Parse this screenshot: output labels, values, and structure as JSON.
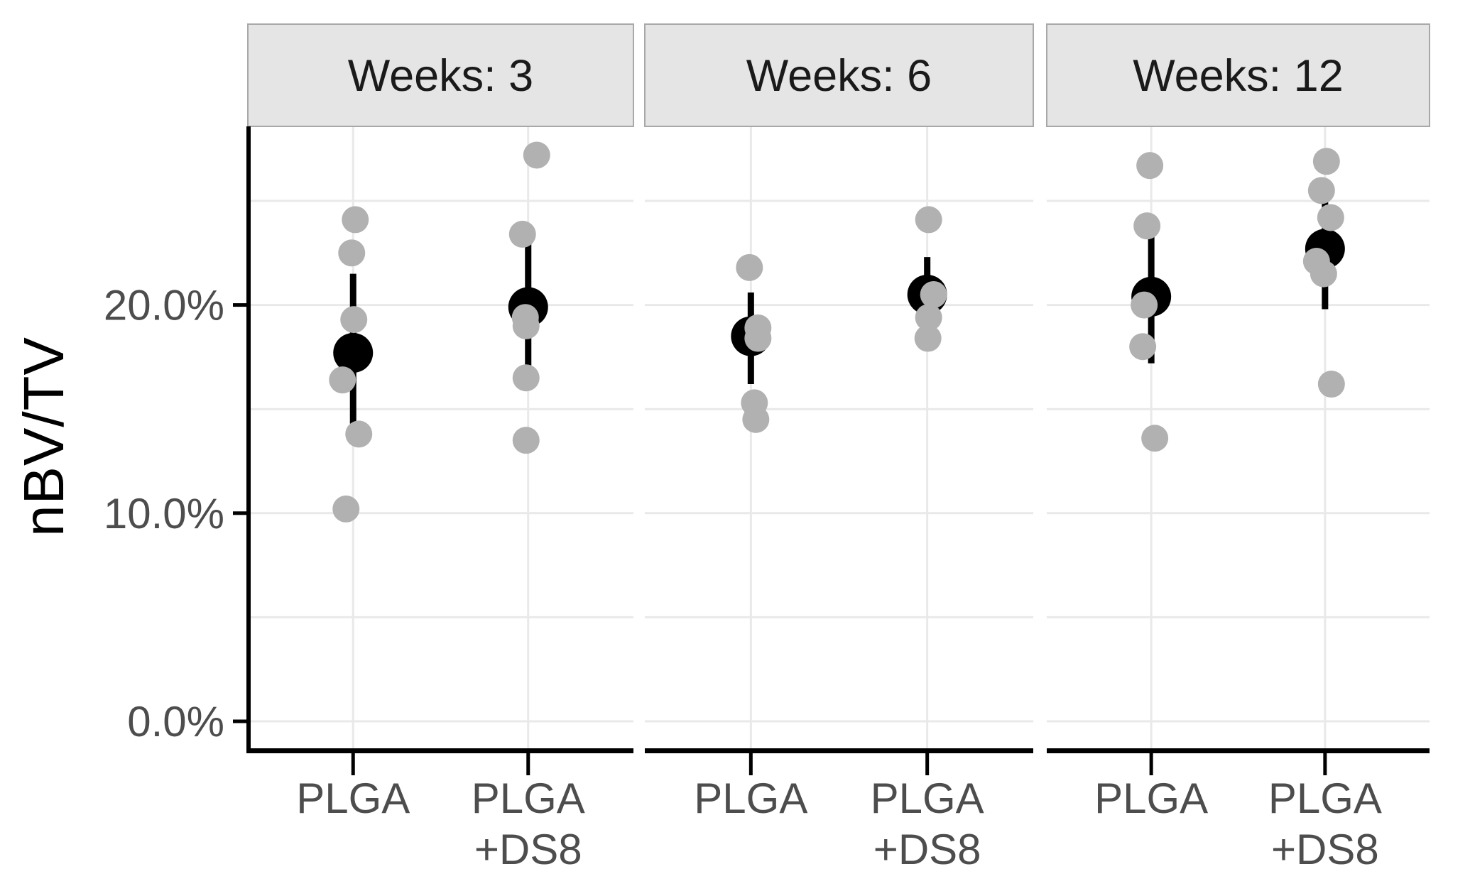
{
  "chart_data": {
    "type": "scatter",
    "subtype": "faceted-jitter-pointrange",
    "title": "",
    "xlabel": "",
    "ylabel": "nBV/TV",
    "y_unit": "%",
    "ylim": [
      -1.4,
      28.6
    ],
    "y_ticks": [
      {
        "label": "0.0%",
        "value": 0
      },
      {
        "label": "10.0%",
        "value": 10
      },
      {
        "label": "20.0%",
        "value": 20
      }
    ],
    "gridlines_pct": [
      0,
      5,
      10,
      15,
      20,
      25
    ],
    "grid": "on",
    "legend_position": "none",
    "facet_variable": "Weeks",
    "facets": [
      {
        "strip_label": "Weeks: 3",
        "groups": [
          {
            "label_lines": [
              "PLGA"
            ],
            "mean": 17.7,
            "bar_low": 14.3,
            "bar_high": 21.5,
            "points": [
              {
                "v": 24.1,
                "dx": 3
              },
              {
                "v": 22.5,
                "dx": -2
              },
              {
                "v": 19.3,
                "dx": 1
              },
              {
                "v": 16.4,
                "dx": -15
              },
              {
                "v": 13.8,
                "dx": 8
              },
              {
                "v": 10.2,
                "dx": -10
              }
            ]
          },
          {
            "label_lines": [
              "PLGA",
              "+DS8"
            ],
            "mean": 19.9,
            "bar_low": 17.0,
            "bar_high": 23.0,
            "points": [
              {
                "v": 27.2,
                "dx": 12
              },
              {
                "v": 23.4,
                "dx": -8
              },
              {
                "v": 19.4,
                "dx": -4
              },
              {
                "v": 19.0,
                "dx": -3
              },
              {
                "v": 16.5,
                "dx": -3
              },
              {
                "v": 13.5,
                "dx": -3
              }
            ]
          }
        ]
      },
      {
        "strip_label": "Weeks: 6",
        "groups": [
          {
            "label_lines": [
              "PLGA"
            ],
            "mean": 18.5,
            "bar_low": 16.2,
            "bar_high": 20.6,
            "points": [
              {
                "v": 21.8,
                "dx": -2
              },
              {
                "v": 18.9,
                "dx": 10
              },
              {
                "v": 18.4,
                "dx": 10
              },
              {
                "v": 15.3,
                "dx": 5
              },
              {
                "v": 14.5,
                "dx": 7
              }
            ]
          },
          {
            "label_lines": [
              "PLGA",
              "+DS8"
            ],
            "mean": 20.5,
            "bar_low": 18.7,
            "bar_high": 22.3,
            "points": [
              {
                "v": 24.1,
                "dx": 2
              },
              {
                "v": 20.5,
                "dx": 9
              },
              {
                "v": 19.4,
                "dx": 2
              },
              {
                "v": 18.4,
                "dx": 1
              }
            ]
          }
        ]
      },
      {
        "strip_label": "Weeks: 12",
        "groups": [
          {
            "label_lines": [
              "PLGA"
            ],
            "mean": 20.4,
            "bar_low": 17.2,
            "bar_high": 23.3,
            "points": [
              {
                "v": 26.7,
                "dx": -2
              },
              {
                "v": 23.8,
                "dx": -6
              },
              {
                "v": 20.0,
                "dx": -10
              },
              {
                "v": 18.0,
                "dx": -12
              },
              {
                "v": 13.6,
                "dx": 5
              }
            ]
          },
          {
            "label_lines": [
              "PLGA",
              "+DS8"
            ],
            "mean": 22.7,
            "bar_low": 19.8,
            "bar_high": 25.4,
            "points": [
              {
                "v": 26.9,
                "dx": 2
              },
              {
                "v": 25.5,
                "dx": -5
              },
              {
                "v": 24.2,
                "dx": 8
              },
              {
                "v": 22.1,
                "dx": -12
              },
              {
                "v": 21.5,
                "dx": -2
              },
              {
                "v": 16.2,
                "dx": 9
              }
            ]
          }
        ]
      }
    ],
    "style": {
      "point_color": "#b1b1b1",
      "mean_color": "#000000",
      "errorbar_color": "#000000",
      "strip_fill": "#e5e5e5",
      "strip_border": "#a8a8a8",
      "strip_text_color": "#1a1a1a",
      "gridline_color": "#e9e9e9",
      "axis_line_color": "#000000",
      "tick_label_color": "#4d4d4d",
      "panel_background": "#ffffff"
    }
  }
}
